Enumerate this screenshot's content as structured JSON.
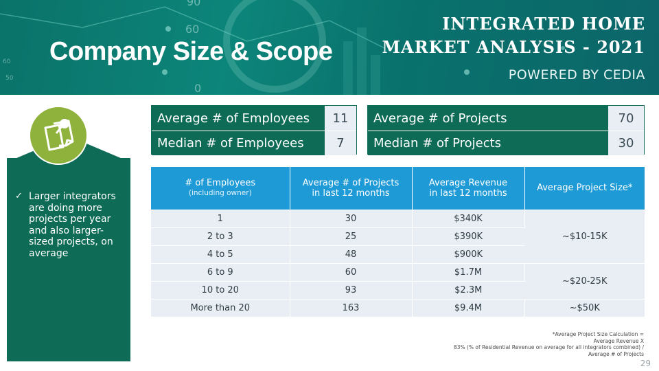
{
  "header": {
    "title": "Company Size & Scope",
    "report_title_line1": "INTEGRATED HOME",
    "report_title_line2": "MARKET ANALYSIS - 2021",
    "powered_by": "POWERED BY CEDIA",
    "background_numbers": [
      "90",
      "60",
      "0",
      "60",
      "50"
    ]
  },
  "colors": {
    "banner": "#0b7a70",
    "dark_green": "#0d6b56",
    "accent_green": "#8fb23c",
    "table_header_blue": "#1e9ad6",
    "cell_bg": "#e8eef3"
  },
  "left_panel": {
    "icon": "sticky-notes-pushpin-icon",
    "bullet": "Larger integrators are doing more projects per year and also larger-sized projects, on average",
    "bullet_lines": [
      "Larger integrators",
      "are doing more",
      "projects per year",
      "and also larger-",
      "sized projects, on",
      "average"
    ]
  },
  "summary_employees": [
    {
      "label": "Average # of Employees",
      "value": "11"
    },
    {
      "label": "Median # of Employees",
      "value": "7"
    }
  ],
  "summary_projects": [
    {
      "label": "Average # of Projects",
      "value": "70"
    },
    {
      "label": "Median # of Projects",
      "value": "30"
    }
  ],
  "table": {
    "headers": {
      "employees": "# of Employees",
      "employees_sub": "(including owner)",
      "projects_line1": "Average # of Projects",
      "projects_line2": "in last 12 months",
      "revenue_line1": "Average Revenue",
      "revenue_line2": "in last 12 months",
      "size": "Average Project Size*"
    },
    "rows": [
      {
        "employees": "1",
        "projects": "30",
        "revenue": "$340K"
      },
      {
        "employees": "2 to 3",
        "projects": "25",
        "revenue": "$390K"
      },
      {
        "employees": "4 to 5",
        "projects": "48",
        "revenue": "$900K"
      },
      {
        "employees": "6 to 9",
        "projects": "60",
        "revenue": "$1.7M"
      },
      {
        "employees": "10 to 20",
        "projects": "93",
        "revenue": "$2.3M"
      },
      {
        "employees": "More than 20",
        "projects": "163",
        "revenue": "$9.4M"
      }
    ],
    "size_groups": [
      "~$10-15K",
      "~$20-25K",
      "~$50K"
    ]
  },
  "footnote": {
    "line1": "*Average Project Size Calculation =",
    "line2": "Average Revenue X",
    "line3": "83% (% of Residential Revenue on average for all integrators combined) /",
    "line4": "Average # of Projects"
  },
  "page_number": "29"
}
